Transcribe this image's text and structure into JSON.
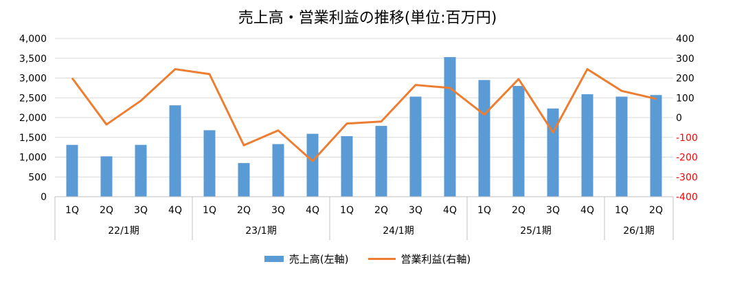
{
  "colors": {
    "bar": "#5b9bd5",
    "line": "#ed7d31",
    "negative_tick": "#ff0000",
    "grid": "#d9d9d9",
    "axis": "#bfbfbf"
  },
  "chart_data": {
    "type": "bar",
    "title": "売上高・営業利益の推移(単位:百万円)",
    "categories": [
      "1Q",
      "2Q",
      "3Q",
      "4Q",
      "1Q",
      "2Q",
      "3Q",
      "4Q",
      "1Q",
      "2Q",
      "3Q",
      "4Q",
      "1Q",
      "2Q",
      "3Q",
      "4Q",
      "1Q",
      "2Q"
    ],
    "groups": [
      {
        "label": "22/1期",
        "count": 4
      },
      {
        "label": "23/1期",
        "count": 4
      },
      {
        "label": "24/1期",
        "count": 4
      },
      {
        "label": "25/1期",
        "count": 4
      },
      {
        "label": "26/1期",
        "count": 2
      }
    ],
    "series": [
      {
        "name": "売上高(左軸)",
        "type": "bar",
        "axis": "left",
        "values": [
          1310,
          1020,
          1310,
          2310,
          1680,
          850,
          1330,
          1590,
          1530,
          1790,
          2530,
          3530,
          2950,
          2800,
          2230,
          2590,
          2530,
          2570
        ]
      },
      {
        "name": "営業利益(右軸)",
        "type": "line",
        "axis": "right",
        "values": [
          200,
          -35,
          85,
          245,
          220,
          -140,
          -65,
          -220,
          -30,
          -20,
          165,
          150,
          15,
          195,
          -75,
          245,
          135,
          95
        ]
      }
    ],
    "y_left": {
      "min": 0,
      "max": 4000,
      "step": 500,
      "tick_labels": [
        "0",
        "500",
        "1,000",
        "1,500",
        "2,000",
        "2,500",
        "3,000",
        "3,500",
        "4,000"
      ]
    },
    "y_right": {
      "min": -400,
      "max": 400,
      "step": 100,
      "tick_labels": [
        "-400",
        "-300",
        "-200",
        "-100",
        "0",
        "100",
        "200",
        "300",
        "400"
      ]
    },
    "grid": true,
    "legend_position": "bottom"
  }
}
